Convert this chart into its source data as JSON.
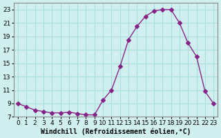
{
  "x": [
    0,
    1,
    2,
    3,
    4,
    5,
    6,
    7,
    8,
    9,
    10,
    11,
    12,
    13,
    14,
    15,
    16,
    17,
    18,
    19,
    20,
    21,
    22,
    23
  ],
  "y": [
    9,
    8.5,
    8,
    7.8,
    7.6,
    7.6,
    7.7,
    7.5,
    7.3,
    7.3,
    9.5,
    11,
    14.5,
    18.5,
    20.5,
    22,
    22.8,
    23,
    23,
    21,
    18,
    16,
    10.8,
    9
  ],
  "line_color": "#882288",
  "marker": "D",
  "marker_size": 3,
  "bg_color": "#d0f0f0",
  "grid_color": "#aadddd",
  "xlabel": "Windchill (Refroidissement éolien,°C)",
  "ylabel": "",
  "xlim": [
    -0.5,
    23.5
  ],
  "ylim": [
    7,
    24
  ],
  "yticks": [
    7,
    9,
    11,
    13,
    15,
    17,
    19,
    21,
    23
  ],
  "xticks": [
    0,
    1,
    2,
    3,
    4,
    5,
    6,
    7,
    8,
    9,
    10,
    11,
    12,
    13,
    14,
    15,
    16,
    17,
    18,
    19,
    20,
    21,
    22,
    23
  ],
  "axis_fontsize": 7,
  "tick_fontsize": 6.5
}
